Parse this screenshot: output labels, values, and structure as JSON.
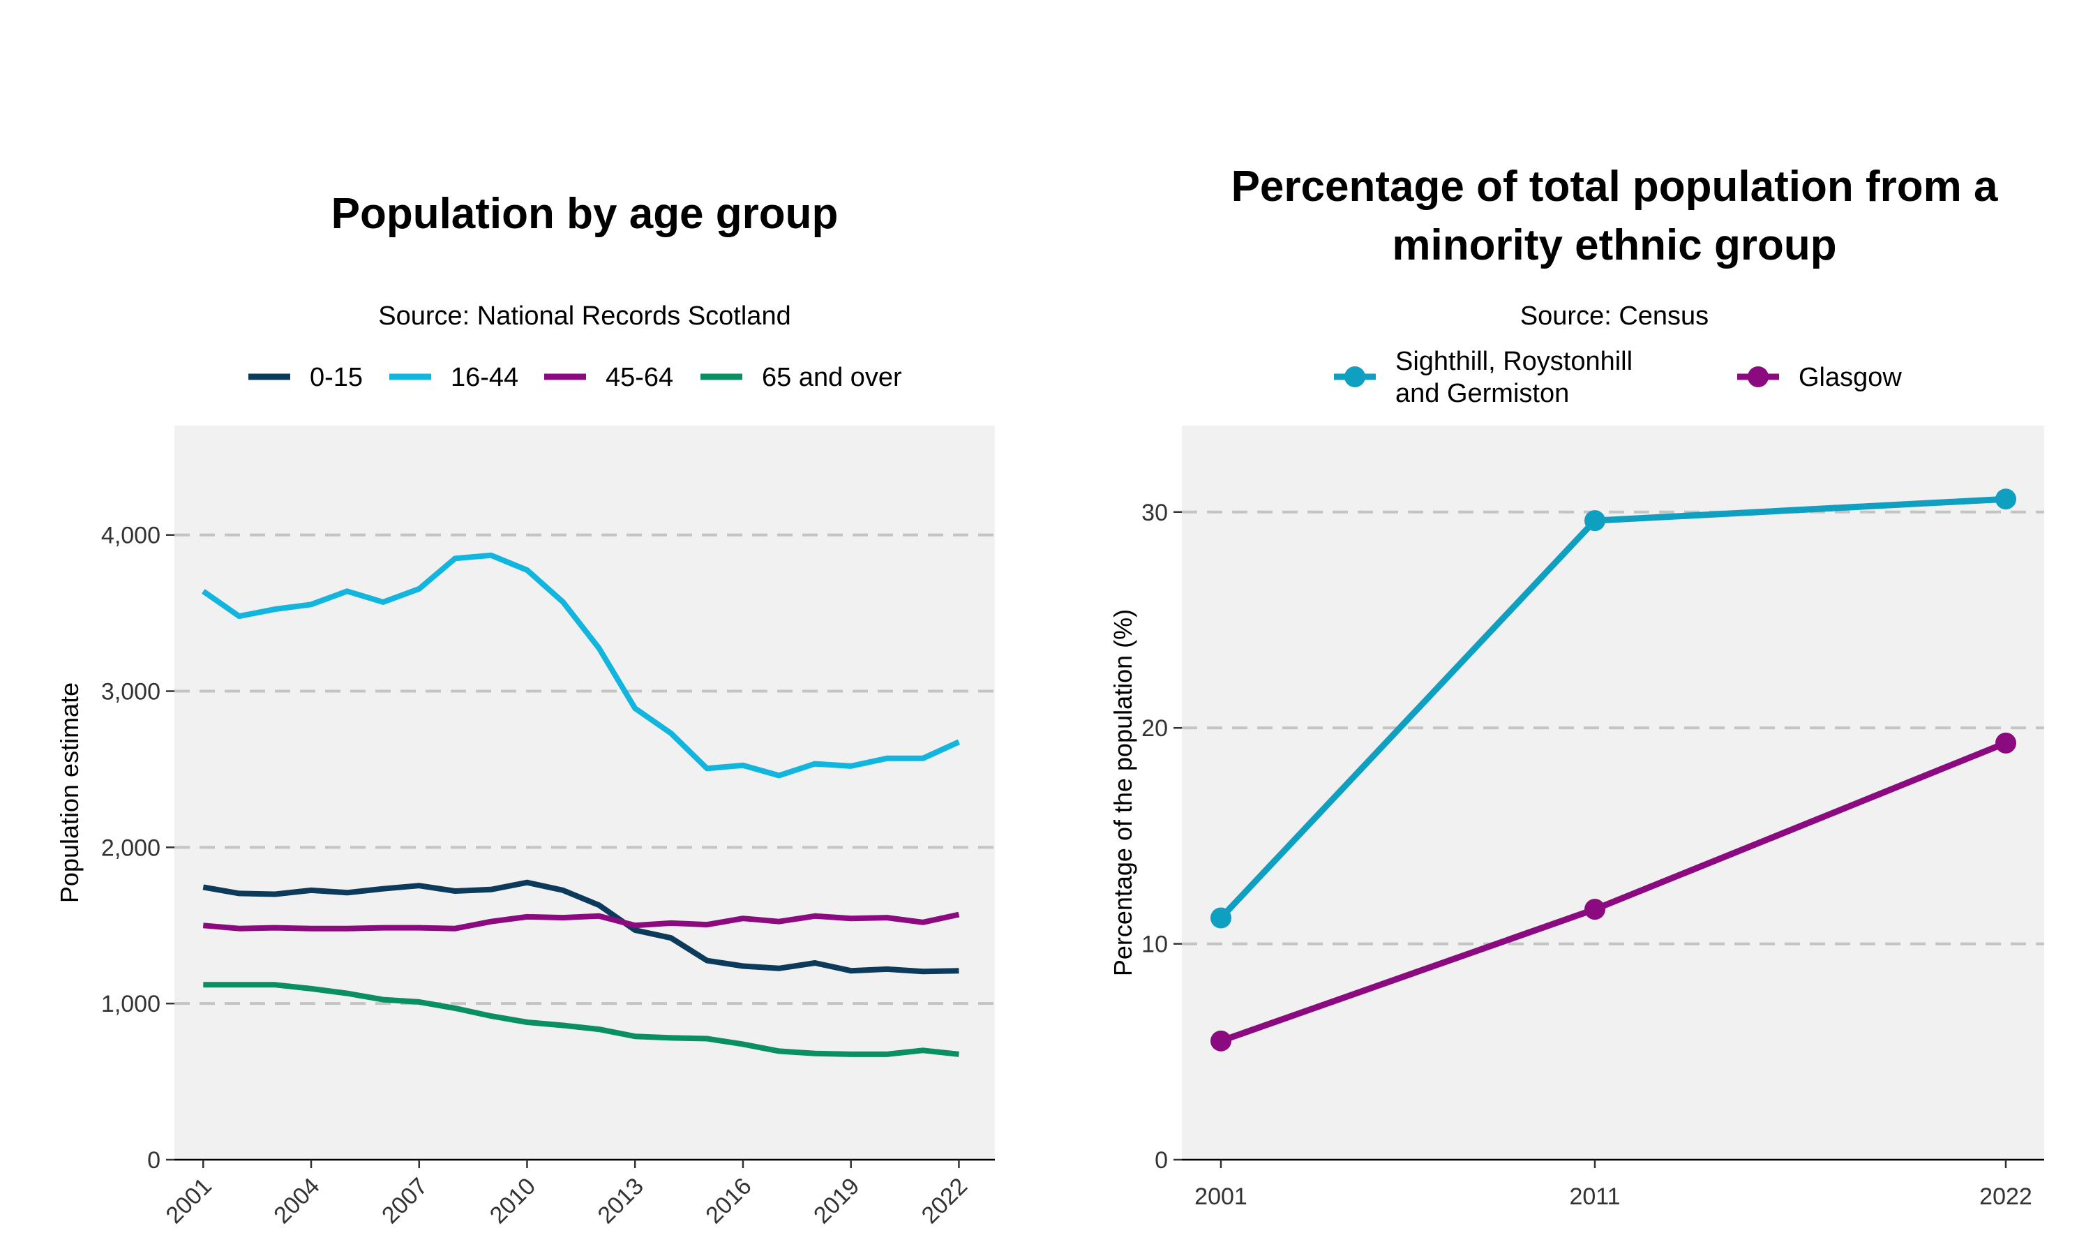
{
  "chart_data": [
    {
      "type": "line",
      "title": "Population by age group",
      "subtitle": "Source: National Records Scotland",
      "xlabel": "",
      "ylabel": "Population estimate",
      "x": [
        2001,
        2002,
        2003,
        2004,
        2005,
        2006,
        2007,
        2008,
        2009,
        2010,
        2011,
        2012,
        2013,
        2014,
        2015,
        2016,
        2017,
        2018,
        2019,
        2020,
        2021,
        2022
      ],
      "x_ticks": [
        2001,
        2004,
        2007,
        2010,
        2013,
        2016,
        2019,
        2022
      ],
      "x_tick_labels": [
        "2001",
        "2004",
        "2007",
        "2010",
        "2013",
        "2016",
        "2019",
        "2022"
      ],
      "xlim": [
        2000.2,
        2023
      ],
      "ylim": [
        0,
        4700
      ],
      "y_ticks": [
        0,
        1000,
        2000,
        3000,
        4000
      ],
      "y_tick_labels": [
        "0",
        "1,000",
        "2,000",
        "3,000",
        "4,000"
      ],
      "grid": "horizontal dashed",
      "legend_position": "top",
      "series": [
        {
          "name": "0-15",
          "color": "#0b3a5a",
          "values": [
            1745,
            1705,
            1700,
            1725,
            1710,
            1735,
            1755,
            1720,
            1730,
            1775,
            1725,
            1630,
            1470,
            1420,
            1275,
            1240,
            1225,
            1260,
            1210,
            1220,
            1205,
            1210
          ]
        },
        {
          "name": "16-44",
          "color": "#12b5dd",
          "values": [
            3640,
            3480,
            3525,
            3555,
            3640,
            3570,
            3655,
            3850,
            3870,
            3775,
            3570,
            3275,
            2890,
            2730,
            2505,
            2525,
            2460,
            2535,
            2520,
            2570,
            2570,
            2675
          ]
        },
        {
          "name": "45-64",
          "color": "#8c0a7f",
          "values": [
            1500,
            1480,
            1485,
            1480,
            1480,
            1485,
            1485,
            1480,
            1525,
            1555,
            1550,
            1560,
            1500,
            1515,
            1505,
            1545,
            1525,
            1560,
            1545,
            1550,
            1520,
            1570
          ]
        },
        {
          "name": "65 and over",
          "color": "#0a8f62",
          "values": [
            1120,
            1120,
            1120,
            1095,
            1065,
            1025,
            1010,
            970,
            920,
            880,
            860,
            835,
            790,
            780,
            775,
            740,
            695,
            680,
            675,
            675,
            700,
            675
          ]
        }
      ]
    },
    {
      "type": "line",
      "title": "Percentage of total population from a minority ethnic group",
      "title_lines": [
        "Percentage of total population from a",
        "minority ethnic group"
      ],
      "subtitle": "Source: Census",
      "xlabel": "",
      "ylabel": "Percentage of the population (%)",
      "categories": [
        "2001",
        "2011",
        "2022"
      ],
      "ylim": [
        0,
        34
      ],
      "y_ticks": [
        0,
        10,
        20,
        30
      ],
      "y_tick_labels": [
        "0",
        "10",
        "20",
        "30"
      ],
      "grid": "horizontal dashed",
      "legend_position": "top",
      "markers": true,
      "series": [
        {
          "name": "Sighthill, Roystonhill and Germiston",
          "name_lines": [
            "Sighthill, Roystonhill",
            "and Germiston"
          ],
          "color": "#0f9fc0",
          "values": [
            11.2,
            29.6,
            30.6
          ]
        },
        {
          "name": "Glasgow",
          "color": "#8c0a7f",
          "values": [
            5.5,
            11.6,
            19.3
          ]
        }
      ]
    }
  ]
}
